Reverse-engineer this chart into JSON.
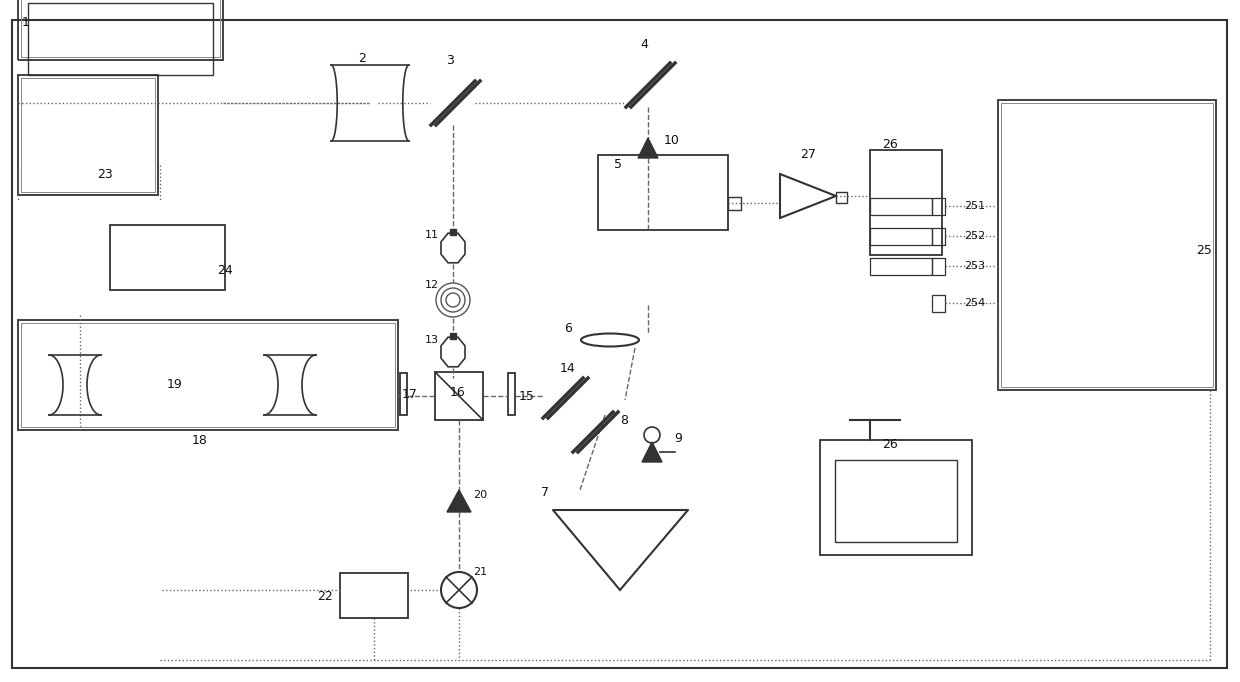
{
  "bg_color": "#ffffff",
  "line_color": "#555555",
  "dashed_color": "#888888",
  "border_color": "#333333",
  "figsize": [
    12.4,
    6.82
  ],
  "dpi": 100
}
